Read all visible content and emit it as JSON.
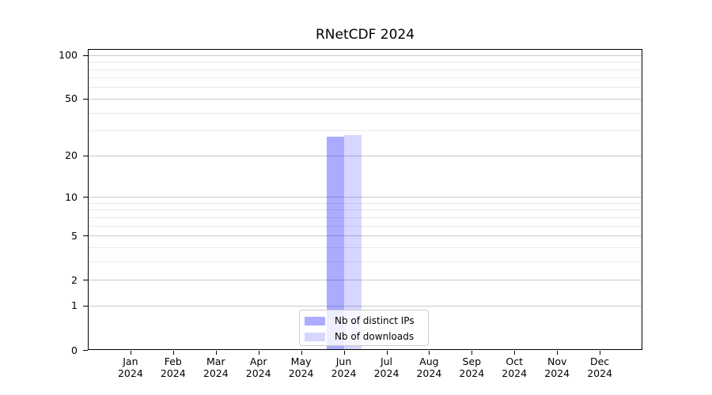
{
  "chart_data": {
    "type": "bar",
    "title": "RNetCDF 2024",
    "categories": [
      "Jan",
      "Feb",
      "Mar",
      "Apr",
      "May",
      "Jun",
      "Jul",
      "Aug",
      "Sep",
      "Oct",
      "Nov",
      "Dec"
    ],
    "year": "2024",
    "series": [
      {
        "name": "Nb of distinct IPs",
        "color": "rgba(0,0,255,0.33)",
        "values": [
          0,
          0,
          0,
          0,
          0,
          27,
          0,
          0,
          0,
          0,
          0,
          0
        ]
      },
      {
        "name": "Nb of downloads",
        "color": "rgba(0,0,255,0.16)",
        "values": [
          0,
          0,
          0,
          0,
          0,
          28,
          0,
          0,
          0,
          0,
          0,
          0
        ]
      }
    ],
    "yscale": "log1p",
    "ylim": [
      0,
      110
    ],
    "y_ticks": [
      0,
      1,
      2,
      5,
      10,
      20,
      50,
      100
    ],
    "y_minor_gridlines": [
      3,
      4,
      6,
      7,
      8,
      9,
      30,
      40,
      60,
      70,
      80,
      90
    ],
    "grid": true,
    "legend_position": "lower center",
    "colors": {
      "background": "#ffffff",
      "axis": "#000000",
      "text": "#000000",
      "grid_major": "#c8c8c8",
      "grid_minor": "#e9e9e9",
      "legend_border": "#cccccc",
      "legend_background": "rgba(255,255,255,0.8)"
    }
  }
}
